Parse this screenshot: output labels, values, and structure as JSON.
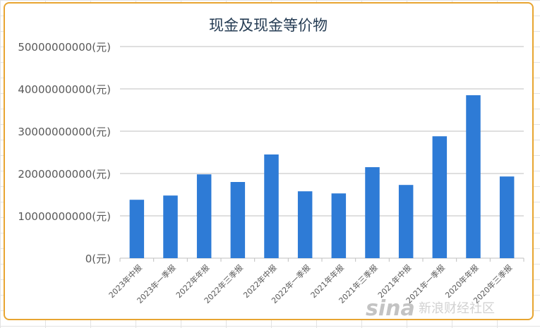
{
  "chart_data": {
    "type": "bar",
    "title": "现金及现金等价物",
    "unit": "(元)",
    "xlabel": "",
    "ylabel": "",
    "ylim": [
      0,
      50000000000
    ],
    "yticks": [
      0,
      10000000000,
      20000000000,
      30000000000,
      40000000000,
      50000000000
    ],
    "ytick_labels": [
      "0(元)",
      "10000000000(元)",
      "20000000000(元)",
      "30000000000(元)",
      "40000000000(元)",
      "50000000000(元)"
    ],
    "categories": [
      "2023年中报",
      "2023年一季报",
      "2022年年报",
      "2022年三季报",
      "2022年中报",
      "2022年一季报",
      "2021年年报",
      "2021年三季报",
      "2021年中报",
      "2021年一季报",
      "2020年年报",
      "2020年三季报"
    ],
    "values": [
      13800000000,
      14800000000,
      19800000000,
      18000000000,
      24500000000,
      15800000000,
      15300000000,
      21500000000,
      17300000000,
      28800000000,
      38500000000,
      19300000000
    ],
    "grid": true,
    "legend": "none",
    "bar_color": "#2e7bd6"
  },
  "watermark": {
    "logo": "sina",
    "text": "新浪财经社区"
  }
}
